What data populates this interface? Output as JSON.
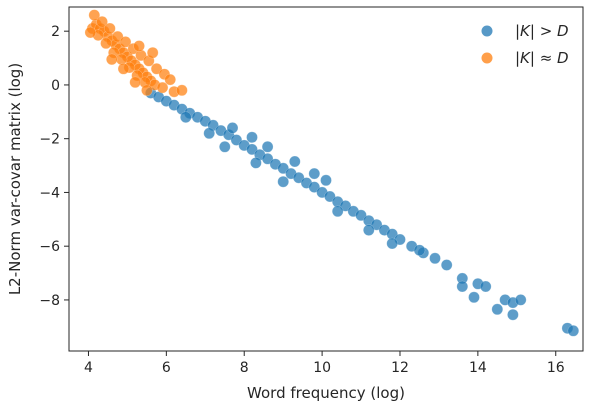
{
  "chart_data": {
    "type": "scatter",
    "title": "",
    "xlabel": "Word frequency (log)",
    "ylabel": "L2-Norm var-covar matrix (log)",
    "xlim": [
      3.5,
      16.7
    ],
    "ylim": [
      -9.9,
      2.9
    ],
    "xticks": [
      4,
      6,
      8,
      10,
      12,
      14,
      16
    ],
    "yticks": [
      -8,
      -6,
      -4,
      -2,
      0,
      2
    ],
    "grid": false,
    "legend_position": "top-right",
    "series": [
      {
        "name": "|K| > D",
        "color": "#1f77b4",
        "points": [
          [
            5.6,
            -0.3
          ],
          [
            5.8,
            -0.45
          ],
          [
            6.0,
            -0.6
          ],
          [
            6.2,
            -0.75
          ],
          [
            6.4,
            -0.9
          ],
          [
            6.6,
            -1.05
          ],
          [
            6.8,
            -1.2
          ],
          [
            7.0,
            -1.35
          ],
          [
            7.2,
            -1.5
          ],
          [
            7.4,
            -1.7
          ],
          [
            7.6,
            -1.85
          ],
          [
            7.8,
            -2.05
          ],
          [
            8.0,
            -2.25
          ],
          [
            8.2,
            -2.4
          ],
          [
            8.4,
            -2.6
          ],
          [
            8.6,
            -2.75
          ],
          [
            8.8,
            -2.95
          ],
          [
            9.0,
            -3.1
          ],
          [
            9.2,
            -3.3
          ],
          [
            9.4,
            -3.45
          ],
          [
            9.6,
            -3.65
          ],
          [
            9.8,
            -3.8
          ],
          [
            10.0,
            -4.0
          ],
          [
            10.2,
            -4.15
          ],
          [
            10.4,
            -4.35
          ],
          [
            10.6,
            -4.5
          ],
          [
            10.8,
            -4.7
          ],
          [
            11.0,
            -4.85
          ],
          [
            11.2,
            -5.05
          ],
          [
            11.4,
            -5.2
          ],
          [
            11.6,
            -5.4
          ],
          [
            11.8,
            -5.55
          ],
          [
            12.0,
            -5.75
          ],
          [
            12.3,
            -6.0
          ],
          [
            12.6,
            -6.25
          ],
          [
            12.9,
            -6.45
          ],
          [
            13.2,
            -6.7
          ],
          [
            13.6,
            -7.2
          ],
          [
            13.6,
            -7.5
          ],
          [
            13.9,
            -7.9
          ],
          [
            14.0,
            -7.4
          ],
          [
            14.2,
            -7.5
          ],
          [
            14.5,
            -8.35
          ],
          [
            14.7,
            -8.0
          ],
          [
            14.9,
            -8.1
          ],
          [
            14.9,
            -8.55
          ],
          [
            15.1,
            -8.0
          ],
          [
            16.3,
            -9.05
          ],
          [
            16.45,
            -9.15
          ],
          [
            7.7,
            -1.6
          ],
          [
            8.2,
            -1.95
          ],
          [
            8.6,
            -2.3
          ],
          [
            9.3,
            -2.85
          ],
          [
            9.8,
            -3.3
          ],
          [
            10.1,
            -3.55
          ],
          [
            7.5,
            -2.3
          ],
          [
            8.3,
            -2.9
          ],
          [
            9.0,
            -3.6
          ],
          [
            10.4,
            -4.7
          ],
          [
            11.2,
            -5.4
          ],
          [
            11.8,
            -5.9
          ],
          [
            12.5,
            -6.15
          ],
          [
            6.5,
            -1.2
          ],
          [
            7.1,
            -1.8
          ]
        ]
      },
      {
        "name": "|K| ≈ D",
        "color": "#ff7f0e",
        "points": [
          [
            4.1,
            2.1
          ],
          [
            4.2,
            2.25
          ],
          [
            4.15,
            2.6
          ],
          [
            4.3,
            2.1
          ],
          [
            4.4,
            2.0
          ],
          [
            4.5,
            1.8
          ],
          [
            4.6,
            1.65
          ],
          [
            4.7,
            1.5
          ],
          [
            4.8,
            1.35
          ],
          [
            4.9,
            1.2
          ],
          [
            5.0,
            1.05
          ],
          [
            5.1,
            0.9
          ],
          [
            5.2,
            0.75
          ],
          [
            5.3,
            0.6
          ],
          [
            5.4,
            0.45
          ],
          [
            5.5,
            0.3
          ],
          [
            5.6,
            0.15
          ],
          [
            5.7,
            0.0
          ],
          [
            5.9,
            -0.1
          ],
          [
            6.2,
            -0.25
          ],
          [
            6.4,
            -0.2
          ],
          [
            4.25,
            1.85
          ],
          [
            4.45,
            1.55
          ],
          [
            4.65,
            1.2
          ],
          [
            4.85,
            0.95
          ],
          [
            5.05,
            0.65
          ],
          [
            5.25,
            0.35
          ],
          [
            5.45,
            0.1
          ],
          [
            4.35,
            2.35
          ],
          [
            4.55,
            2.1
          ],
          [
            4.75,
            1.8
          ],
          [
            4.95,
            1.6
          ],
          [
            5.15,
            1.35
          ],
          [
            5.35,
            1.1
          ],
          [
            5.55,
            0.9
          ],
          [
            5.75,
            0.6
          ],
          [
            5.95,
            0.4
          ],
          [
            6.1,
            0.2
          ],
          [
            4.05,
            1.95
          ],
          [
            4.6,
            0.95
          ],
          [
            4.9,
            0.6
          ],
          [
            5.2,
            0.1
          ],
          [
            5.5,
            -0.2
          ],
          [
            5.3,
            1.45
          ],
          [
            5.65,
            1.2
          ]
        ]
      }
    ]
  }
}
